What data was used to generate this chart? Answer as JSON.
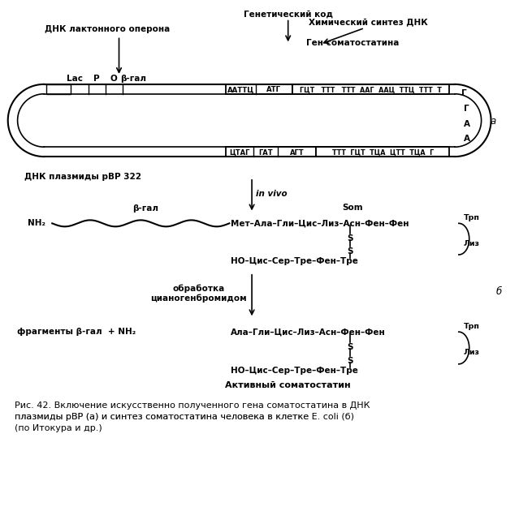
{
  "bg_color": "#ffffff",
  "top_label1": "Генетический код",
  "top_label2": "ДНК лактонного оперона",
  "top_label3": "Химический синтез ДНК",
  "gen_som_label": "Ген соматостатина",
  "plasmid_label": "ДНК плазмиды рВР 322",
  "label_a": "а",
  "label_b": "б",
  "lac_label": "Lac",
  "p_label": "P",
  "o_label": "O",
  "bgal_label": "β-гал",
  "in_vivo": "in vivo",
  "som_label": "Som",
  "nh2_label": "NH₂",
  "bgal2_label": "β-гал",
  "chain1": "Мет–Ала–Гли–Цис–Лиз–Асн–Фен–Фен",
  "chain2": "НО–Цис–Сер–Тре–Фен–Тре",
  "trp_label": "Трп",
  "liz_label": "Лиз",
  "obrabotka": "обработка\nцианогенбромидом",
  "fragments_label": "фрагменты β-гал  + NH₂",
  "chain3": "Ала–Гли–Цис–Лиз–Асн–Фен–Фен",
  "chain4": "НО–Цис–Сер–Тре–Фен–Тре",
  "trp2_label": "Трп",
  "liz2_label": "Лиз",
  "active_som": "Активный соматостатин",
  "cap_line1": "Рис. 42. Включение искусственно полученного гена соматостатина в ДНК",
  "cap_line2a": "плазмиды рВР (а) и синтез соматостатина человека в клетке ",
  "cap_line2b": "E. coli",
  "cap_line2c": " (б)",
  "cap_line3": "(по Итокура и др.)"
}
